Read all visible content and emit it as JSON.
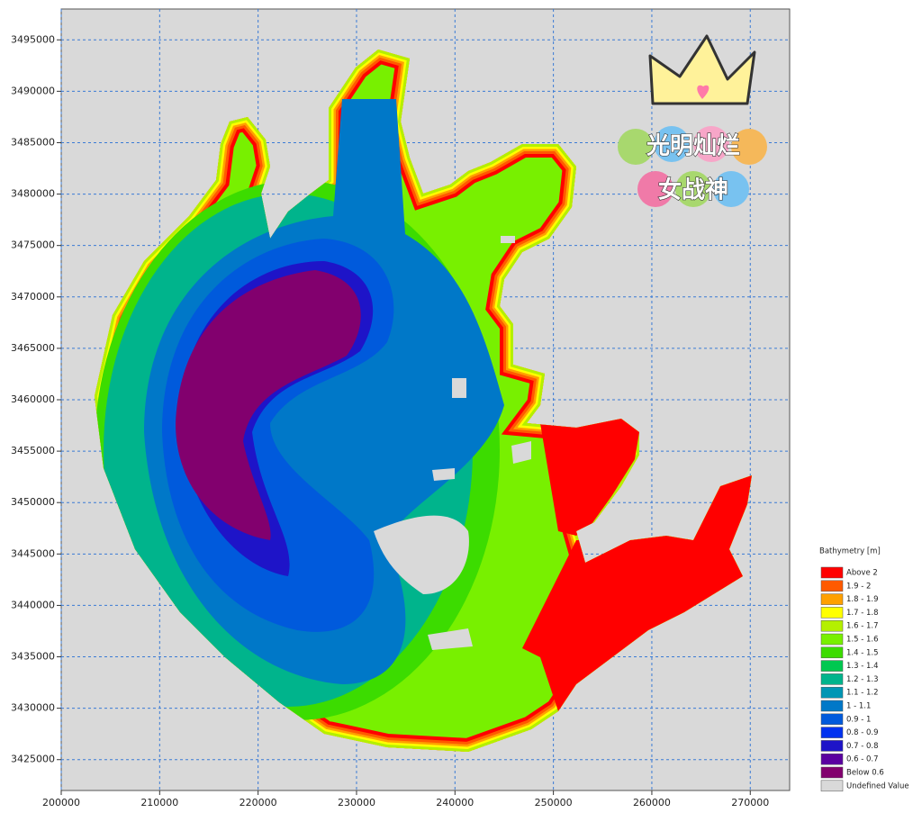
{
  "axes": {
    "xlim": [
      200000,
      274000
    ],
    "xticks": [
      200000,
      210000,
      220000,
      230000,
      240000,
      250000,
      260000,
      270000
    ],
    "ylim": [
      3422000,
      3498000
    ],
    "yticks": [
      3425000,
      3430000,
      3435000,
      3440000,
      3445000,
      3450000,
      3455000,
      3460000,
      3465000,
      3470000,
      3475000,
      3480000,
      3485000,
      3490000,
      3495000
    ]
  },
  "legend": {
    "title": "Bathymetry [m]",
    "items": [
      {
        "label": "Above  2",
        "color": "#ff0000"
      },
      {
        "label": "1.9 -  2",
        "color": "#ff5a00"
      },
      {
        "label": "1.8 - 1.9",
        "color": "#ffa000"
      },
      {
        "label": "1.7 - 1.8",
        "color": "#ffff00"
      },
      {
        "label": "1.6 - 1.7",
        "color": "#b4f000"
      },
      {
        "label": "1.5 - 1.6",
        "color": "#78f000"
      },
      {
        "label": "1.4 - 1.5",
        "color": "#3cdc00"
      },
      {
        "label": "1.3 - 1.4",
        "color": "#00c850"
      },
      {
        "label": "1.2 - 1.3",
        "color": "#00b48c"
      },
      {
        "label": "1.1 - 1.2",
        "color": "#0096b4"
      },
      {
        "label": "1 - 1.1",
        "color": "#0078c8"
      },
      {
        "label": "0.9 -  1",
        "color": "#005adc"
      },
      {
        "label": "0.8 - 0.9",
        "color": "#0032f0"
      },
      {
        "label": "0.7 - 0.8",
        "color": "#1e14c8"
      },
      {
        "label": "0.6 - 0.7",
        "color": "#5a00a0"
      },
      {
        "label": "Below 0.6",
        "color": "#82006e"
      },
      {
        "label": "Undefined Value",
        "color": "#d9d9d9"
      }
    ]
  },
  "watermark": {
    "lines": [
      "光明灿烂",
      "女战神"
    ]
  }
}
